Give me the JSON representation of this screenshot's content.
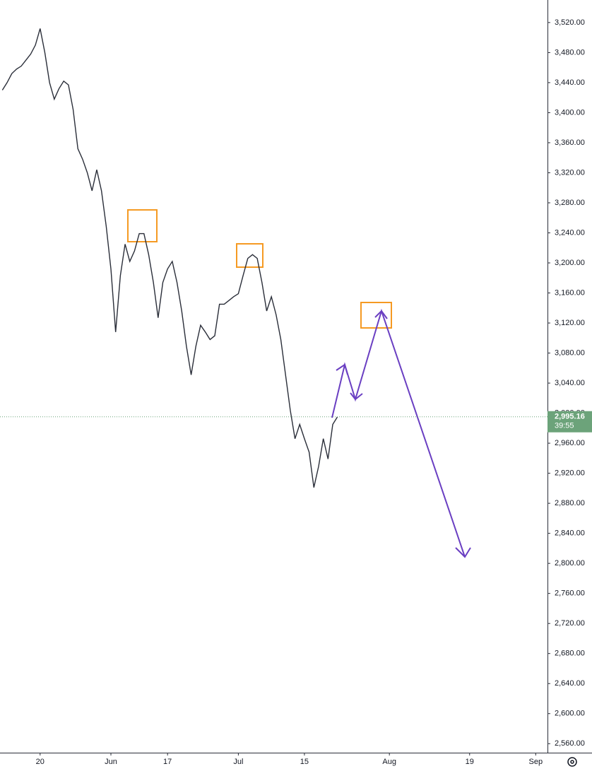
{
  "chart_data": {
    "type": "line",
    "categories": [
      null,
      null,
      null,
      null,
      null,
      null,
      null,
      null,
      "20",
      null,
      null,
      null,
      null,
      null,
      null,
      null,
      null,
      null,
      null,
      null,
      null,
      null,
      null,
      "Jun",
      null,
      null,
      null,
      null,
      null,
      null,
      null,
      null,
      null,
      null,
      null,
      "17",
      null,
      null,
      null,
      null,
      null,
      null,
      null,
      null,
      null,
      null,
      null,
      null,
      null,
      null,
      "Jul",
      null,
      null,
      null,
      null,
      null,
      null,
      null,
      null,
      null,
      null,
      null,
      null,
      null,
      "15",
      null,
      null,
      null,
      null,
      null,
      null,
      null,
      null,
      null,
      null,
      null,
      null,
      null,
      null,
      null,
      null,
      null,
      "Aug",
      null,
      null,
      null,
      null,
      null,
      null,
      null,
      null,
      null,
      null,
      null,
      null,
      null,
      null,
      null,
      null,
      "19",
      null,
      null,
      null,
      null,
      null,
      null,
      null,
      null,
      null,
      null,
      null,
      null,
      null,
      "Sep",
      null,
      null
    ],
    "series": [
      {
        "color": "#2a2e39",
        "values": [
          3430,
          3440,
          3452,
          3458,
          3462,
          3470,
          3478,
          3490,
          3512,
          3480,
          3440,
          3418,
          3432,
          3442,
          3437,
          3404,
          3352,
          3338,
          3320,
          3296,
          3324,
          3296,
          3249,
          3192,
          3108,
          3183,
          3225,
          3202,
          3216,
          3239,
          3239,
          3211,
          3174,
          3127,
          3174,
          3192,
          3202,
          3174,
          3136,
          3089,
          3051,
          3089,
          3117,
          3108,
          3098,
          3103,
          3145,
          3145,
          3150,
          3155,
          3159,
          3183,
          3206,
          3211,
          3206,
          3174,
          3136,
          3155,
          3131,
          3098,
          3051,
          3004,
          2966,
          2985,
          2966,
          2948,
          2901,
          2929,
          2966,
          2939,
          2985,
          2995.16,
          null,
          null,
          null,
          null,
          null,
          null,
          null,
          null,
          null,
          null,
          null,
          null,
          null,
          null,
          null,
          null,
          null,
          null,
          null,
          null,
          null,
          null,
          null,
          null,
          null,
          null,
          null,
          null,
          null,
          null,
          null,
          null,
          null,
          null,
          null,
          null,
          null,
          null,
          null,
          null,
          null,
          null,
          null,
          null
        ]
      }
    ],
    "ylim": [
      2548,
      3550
    ],
    "yticks": [
      {
        "value": 2560,
        "label": "2,560.00"
      },
      {
        "value": 2600,
        "label": "2,600.00"
      },
      {
        "value": 2640,
        "label": "2,640.00"
      },
      {
        "value": 2680,
        "label": "2,680.00"
      },
      {
        "value": 2720,
        "label": "2,720.00"
      },
      {
        "value": 2760,
        "label": "2,760.00"
      },
      {
        "value": 2800,
        "label": "2,800.00"
      },
      {
        "value": 2840,
        "label": "2,840.00"
      },
      {
        "value": 2880,
        "label": "2,880.00"
      },
      {
        "value": 2920,
        "label": "2,920.00"
      },
      {
        "value": 2960,
        "label": "2,960.00"
      },
      {
        "value": 3000,
        "label": "3,000.00"
      },
      {
        "value": 3040,
        "label": "3,040.00"
      },
      {
        "value": 3080,
        "label": "3,080.00"
      },
      {
        "value": 3120,
        "label": "3,120.00"
      },
      {
        "value": 3160,
        "label": "3,160.00"
      },
      {
        "value": 3200,
        "label": "3,200.00"
      },
      {
        "value": 3240,
        "label": "3,240.00"
      },
      {
        "value": 3280,
        "label": "3,280.00"
      },
      {
        "value": 3320,
        "label": "3,320.00"
      },
      {
        "value": 3360,
        "label": "3,360.00"
      },
      {
        "value": 3400,
        "label": "3,400.00"
      },
      {
        "value": 3440,
        "label": "3,440.00"
      },
      {
        "value": 3480,
        "label": "3,480.00"
      },
      {
        "value": 3520,
        "label": "3,520.00"
      }
    ],
    "last_price": {
      "value": 2995.16,
      "label": "2,995.16"
    },
    "countdown": "39:55",
    "price_color": "#6ca37a"
  }
}
